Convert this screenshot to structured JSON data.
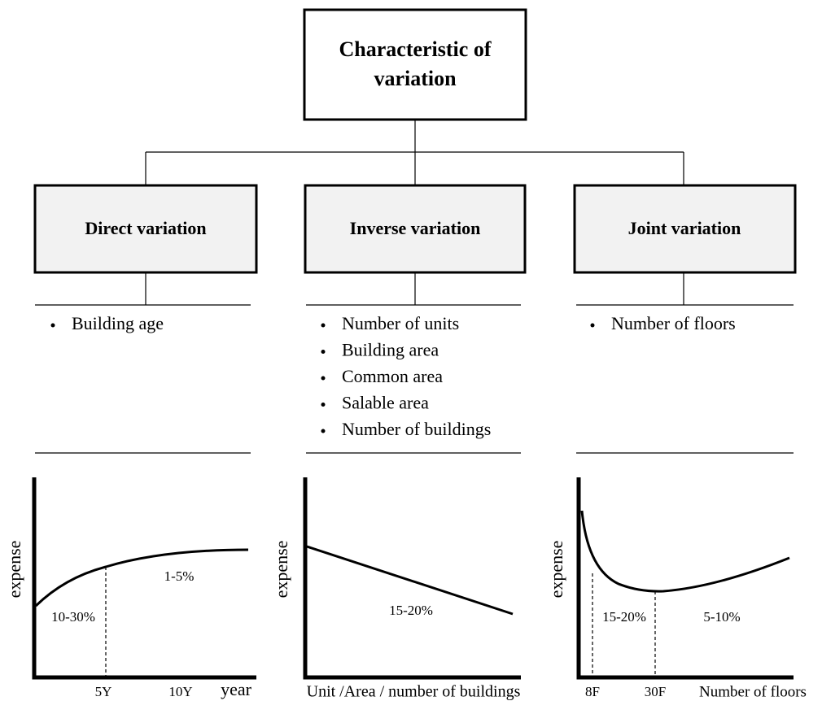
{
  "root": {
    "title_lines": [
      "Characteristic of",
      "variation"
    ]
  },
  "columns": [
    {
      "title": "Direct variation",
      "items": [
        "Building age"
      ],
      "graph": {
        "y_label": "expense",
        "x_ticks": [
          "5Y",
          "10Y"
        ],
        "x_label": "year",
        "annotations": [
          "10-30%",
          "1-5%"
        ]
      }
    },
    {
      "title": "Inverse variation",
      "items": [
        "Number of units",
        "Building area",
        "Common area",
        "Salable area",
        "Number of buildings"
      ],
      "graph": {
        "y_label": "expense",
        "x_label": "Unit /Area / number of buildings",
        "annotations": [
          "15-20%"
        ]
      }
    },
    {
      "title": "Joint variation",
      "items": [
        "Number of floors"
      ],
      "graph": {
        "y_label": "expense",
        "x_ticks": [
          "8F",
          "30F"
        ],
        "x_label": "Number of floors",
        "annotations": [
          "15-20%",
          "5-10%"
        ]
      }
    }
  ]
}
